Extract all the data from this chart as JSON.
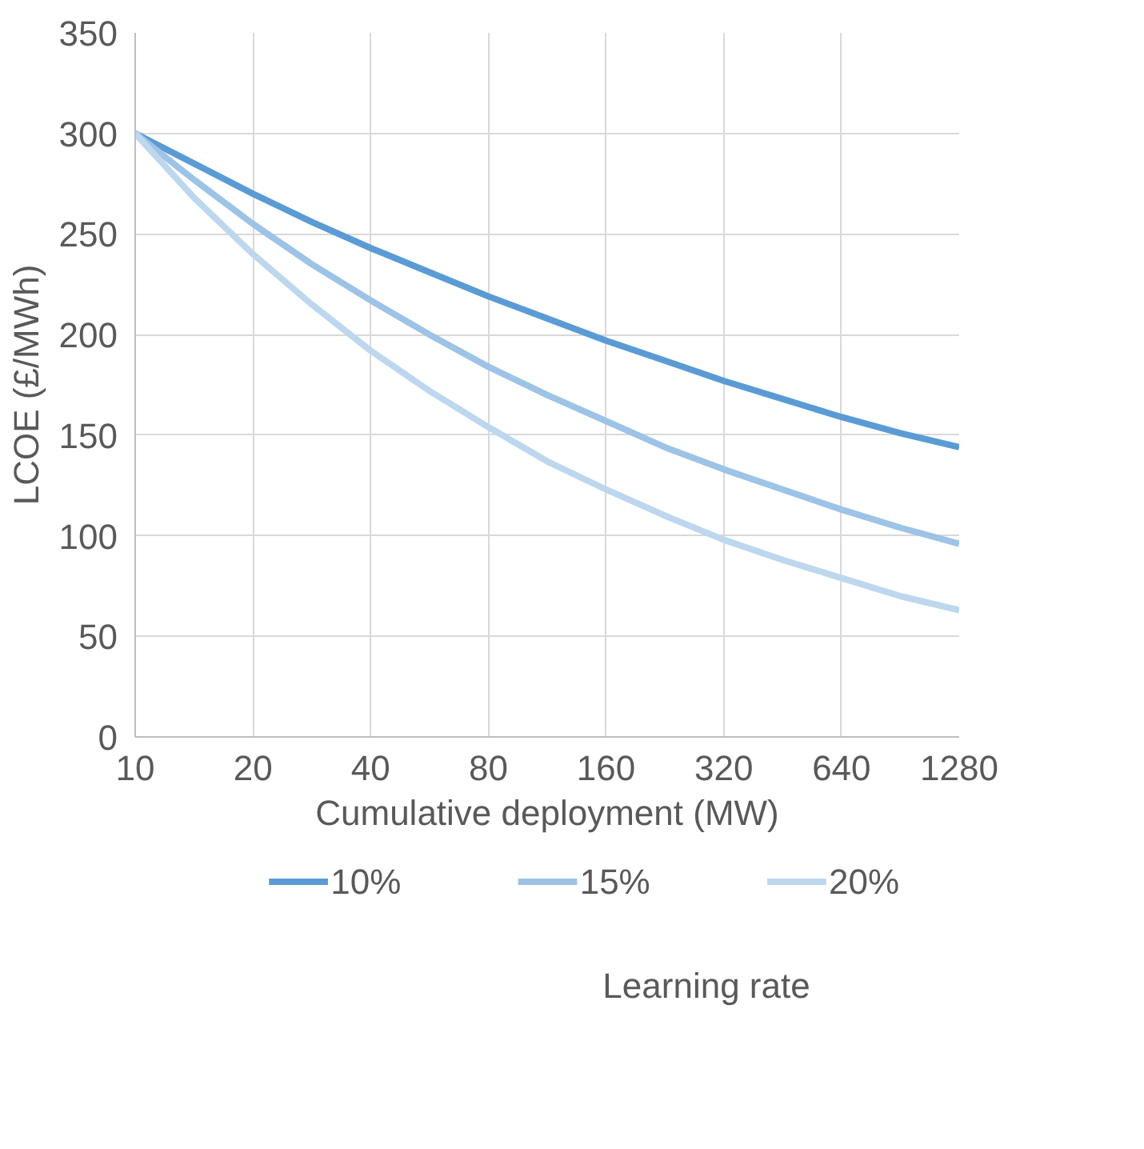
{
  "chart_data": {
    "type": "line",
    "xlabel": "Cumulative deployment (MW)",
    "ylabel": "LCOE (£/MWh)",
    "legend_title": "Learning rate",
    "x": [
      10,
      14.14,
      20,
      28.28,
      40,
      56.57,
      80,
      113.1,
      160,
      226.3,
      320,
      452.5,
      640,
      905.1,
      1280
    ],
    "series": [
      {
        "name": "10%",
        "color": "#5b9bd5",
        "values": [
          300,
          285,
          270,
          256,
          243,
          231,
          219,
          208,
          197,
          187,
          177,
          168,
          159,
          151,
          144
        ]
      },
      {
        "name": "15%",
        "color": "#9dc3e6",
        "values": [
          300,
          277,
          255,
          235,
          217,
          200,
          184,
          170,
          157,
          144,
          133,
          123,
          113,
          104,
          96
        ]
      },
      {
        "name": "20%",
        "color": "#bdd7ee",
        "values": [
          300,
          268,
          240,
          215,
          192,
          172,
          154,
          137,
          123,
          110,
          98,
          88,
          79,
          70,
          63
        ]
      }
    ],
    "log": "x",
    "xlim": [
      10,
      1280
    ],
    "xticks": [
      10,
      20,
      40,
      80,
      160,
      320,
      640,
      1280
    ],
    "ylim": [
      0,
      350
    ],
    "yticks": [
      0,
      50,
      100,
      150,
      200,
      250,
      300,
      350
    ],
    "grid": true,
    "legend": "bottom",
    "marker": "none",
    "line_style": "solid"
  }
}
